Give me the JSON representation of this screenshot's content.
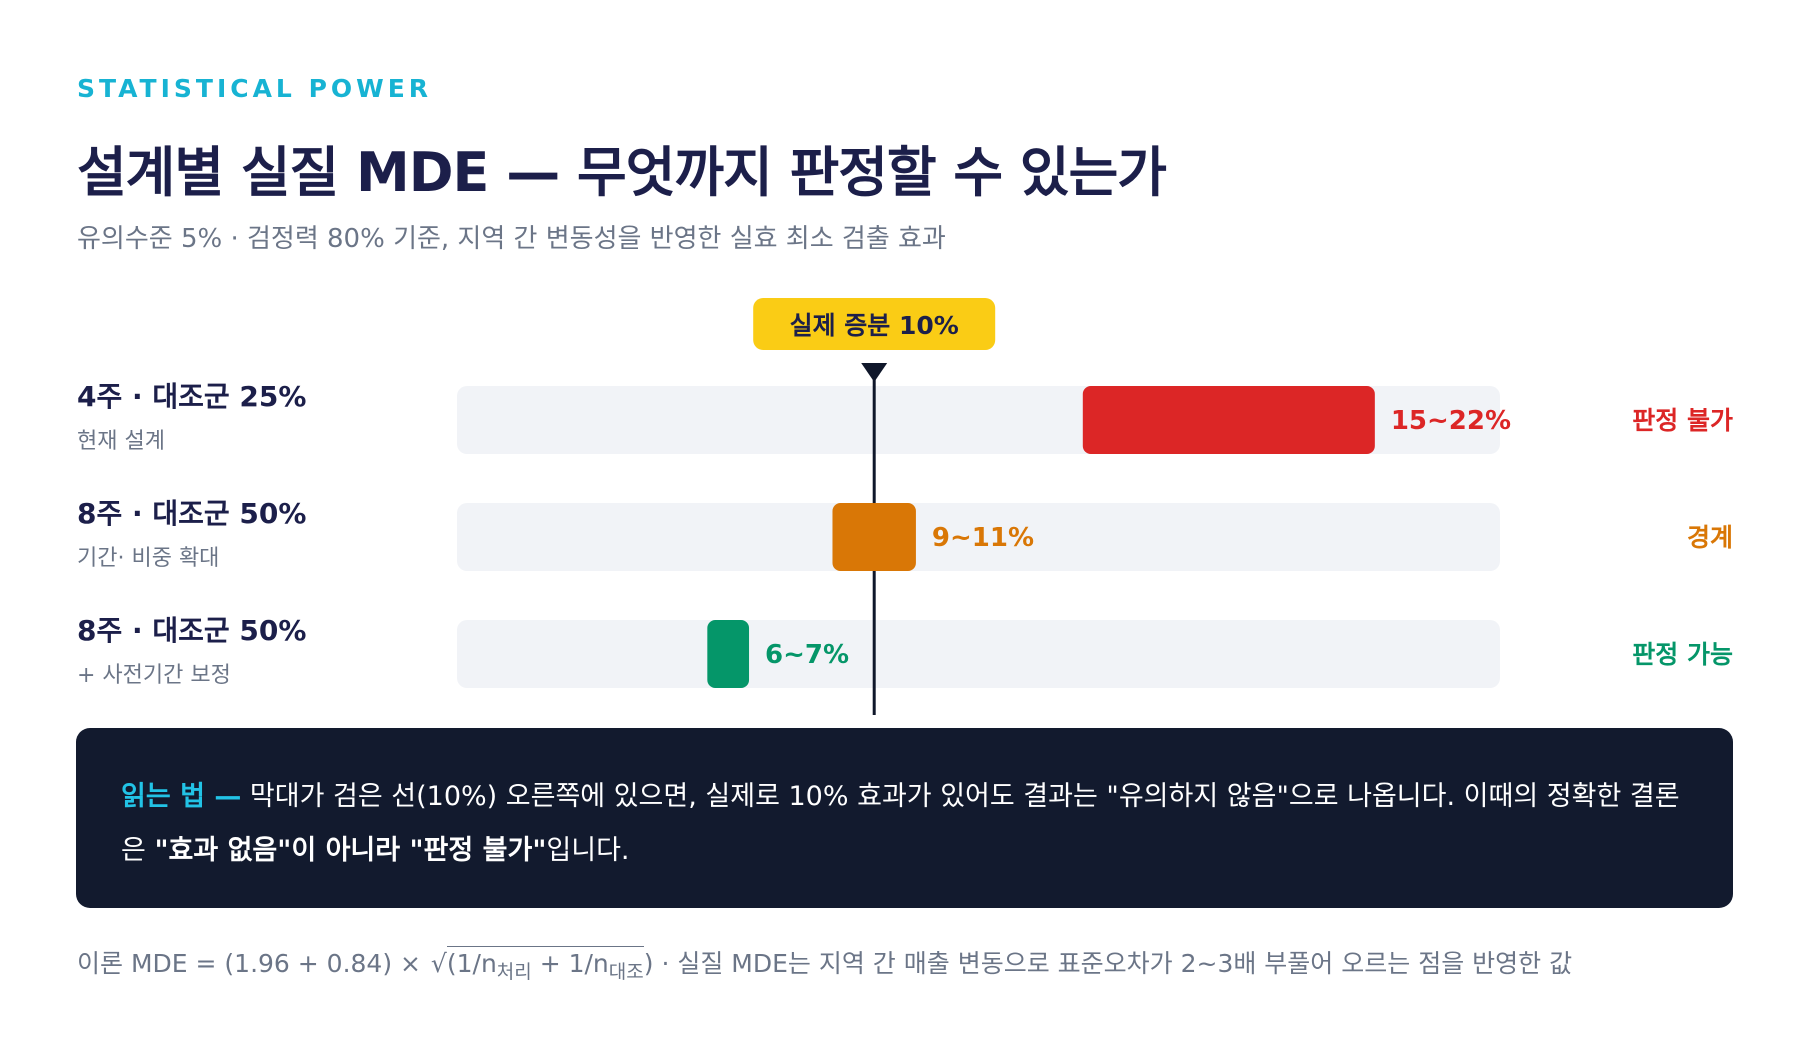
{
  "header": {
    "eyebrow": "STATISTICAL POWER",
    "title": "설계별 실질 MDE — 무엇까지 판정할 수 있는가",
    "subtitle": "유의수준 5% ·  검정력 80% 기준, 지역 간 변동성을 반영한 실효 최소 검출 효과"
  },
  "chart_data": {
    "type": "bar",
    "orientation": "horizontal-range",
    "unit": "%",
    "xlim": [
      0,
      25
    ],
    "reference": {
      "value": 10,
      "label": "실제 증분 10%"
    },
    "rows": [
      {
        "title": "4주 ·  대조군 25%",
        "subtitle": "현재 설계",
        "low": 15,
        "high": 22,
        "label": "15~22%",
        "verdict": "판정 불가",
        "color": "#dc2626"
      },
      {
        "title": "8주 ·  대조군 50%",
        "subtitle": "기간· 비중 확대",
        "low": 9,
        "high": 11,
        "label": "9~11%",
        "verdict": "경계",
        "color": "#d97706"
      },
      {
        "title": "8주 ·  대조군 50%",
        "subtitle": "+ 사전기간 보정",
        "low": 6,
        "high": 7,
        "label": "6~7%",
        "verdict": "판정 가능",
        "color": "#059669"
      }
    ]
  },
  "callout": {
    "lead": "읽는 법 —",
    "text1": " 막대가 검은 선(10%) 오른쪽에 있으면, 실제로 10% 효과가 있어도 결과는 \"유의하지 않음\"으로 나옵니다. 이때의 정확한 결론은 ",
    "bold1": "\"효과 없음\"이 아니라 \"판정 불가\"",
    "text2": "입니다."
  },
  "footnote": {
    "part1": "이론 MDE = (1.96 + 0.84) × ",
    "sqrt_symbol": "√",
    "part2": "(1/n",
    "sub1": "처리",
    "part3": " + 1/n",
    "sub2": "대조",
    "part4": ") · 실질 MDE는 지역 간 매출 변동으로 표준오차가 2~3배 부풀어 오르는 점을 반영한 값"
  }
}
